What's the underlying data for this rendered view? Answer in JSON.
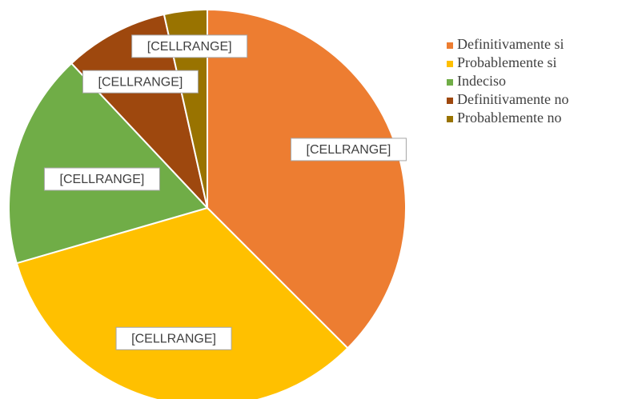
{
  "chart_data": {
    "type": "pie",
    "categories": [
      "Definitivamente si",
      "Probablemente si",
      "Indeciso",
      "Definitivamente no",
      "Probablemente no"
    ],
    "values": [
      37.5,
      33,
      17.5,
      8.5,
      3.5
    ],
    "colors": [
      "#ed7d31",
      "#ffc000",
      "#70ad47",
      "#9e480e",
      "#997300"
    ],
    "data_labels": [
      "[CELLRANGE]",
      "[CELLRANGE]",
      "[CELLRANGE]",
      "[CELLRANGE]",
      "[CELLRANGE]"
    ],
    "legend": "right"
  }
}
